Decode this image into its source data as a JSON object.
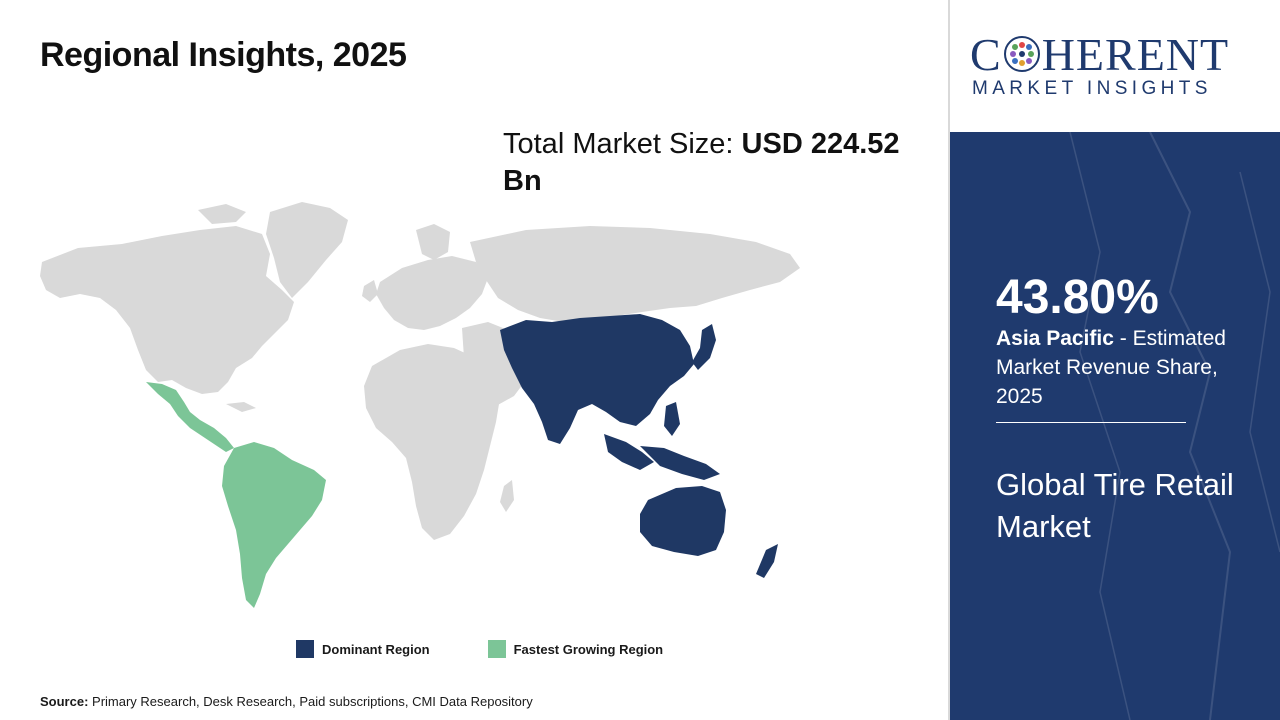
{
  "title": "Regional Insights, 2025",
  "market_size": {
    "label": "Total Market Size: ",
    "value": "USD 224.52 Bn"
  },
  "legend": [
    {
      "label": "Dominant Region",
      "color": "#1f3864"
    },
    {
      "label": "Fastest Growing Region",
      "color": "#7cc597"
    }
  ],
  "map": {
    "base_color": "#d9d9d9",
    "dominant_region": "Asia Pacific",
    "fastest_growing_region": "Latin America"
  },
  "source": {
    "label": "Source:",
    "text": " Primary Research, Desk Research, Paid subscriptions, CMI Data Repository"
  },
  "logo": {
    "main_left": "C",
    "main_right": "HERENT",
    "sub": "MARKET INSIGHTS"
  },
  "highlight": {
    "share": "43.80%",
    "region": "Asia Pacific",
    "desc": " - Estimated Market Revenue Share, 2025",
    "market_name": "Global Tire Retail Market"
  },
  "colors": {
    "panel": "#1f3a6e",
    "accent": "#1f3a6e"
  }
}
